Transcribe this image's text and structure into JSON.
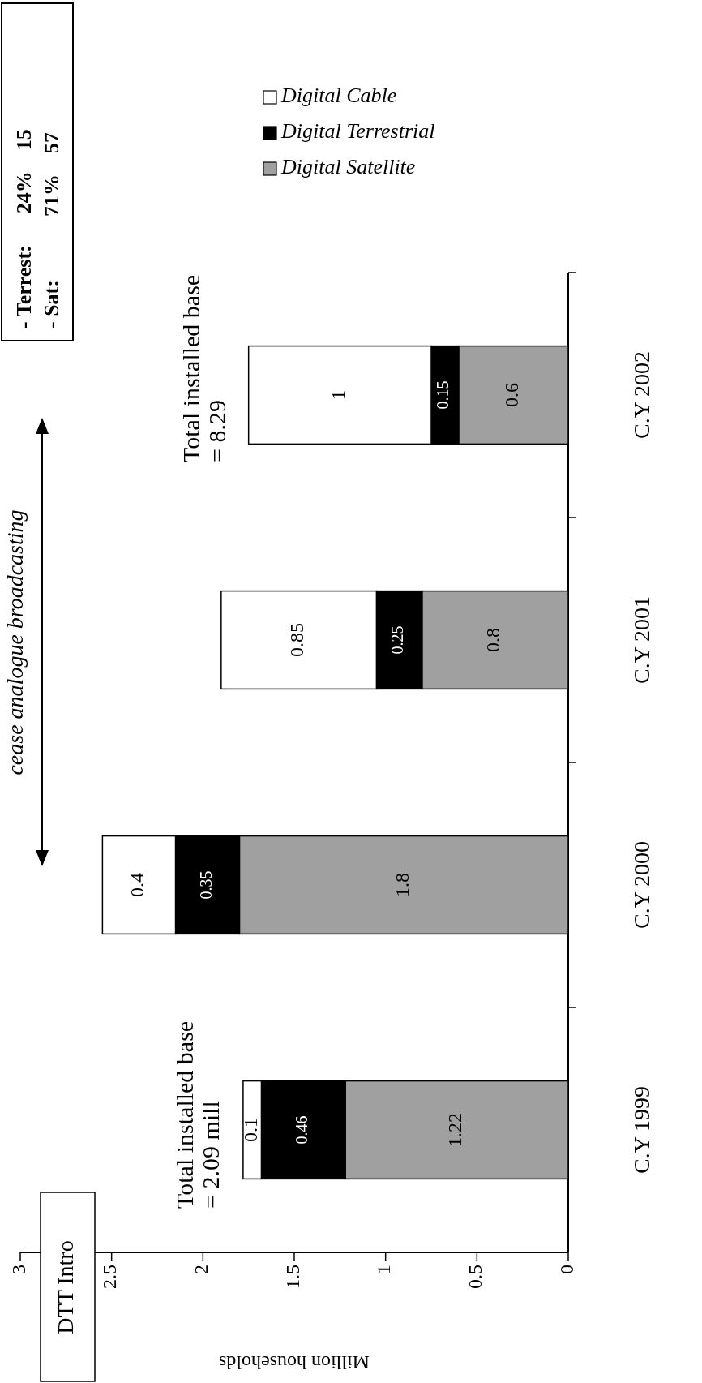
{
  "chart_data": {
    "type": "bar",
    "stacked": true,
    "orientation": "horizontal",
    "data_labels": true,
    "legend": "right",
    "categories": [
      "C.Y 2002",
      "C.Y 2001",
      "C.Y 2000",
      "C.Y 1999"
    ],
    "series": [
      {
        "name": "Digital Satellite",
        "color": "#a0a0a0",
        "values": [
          0.6,
          0.8,
          1.8,
          1.22
        ]
      },
      {
        "name": "Digital Terrestrial",
        "color": "#000000",
        "values": [
          0.15,
          0.25,
          0.35,
          0.46
        ]
      },
      {
        "name": "Digital Cable",
        "color": "#ffffff",
        "values": [
          1,
          0.85,
          0.4,
          0.1
        ]
      }
    ],
    "xlim": [
      3,
      0
    ],
    "xticks": [
      3,
      2.5,
      2,
      1.5,
      1,
      0.5,
      0
    ],
    "xlabel": "Million households",
    "annotations": [
      "DTT Intro",
      "Total installed base\n= 2.09 mill",
      "cease analogue broadcasting",
      "Total installed base\n= 8.29",
      "- Terrest:      24%    15",
      "- Sat:            71%    57"
    ]
  }
}
